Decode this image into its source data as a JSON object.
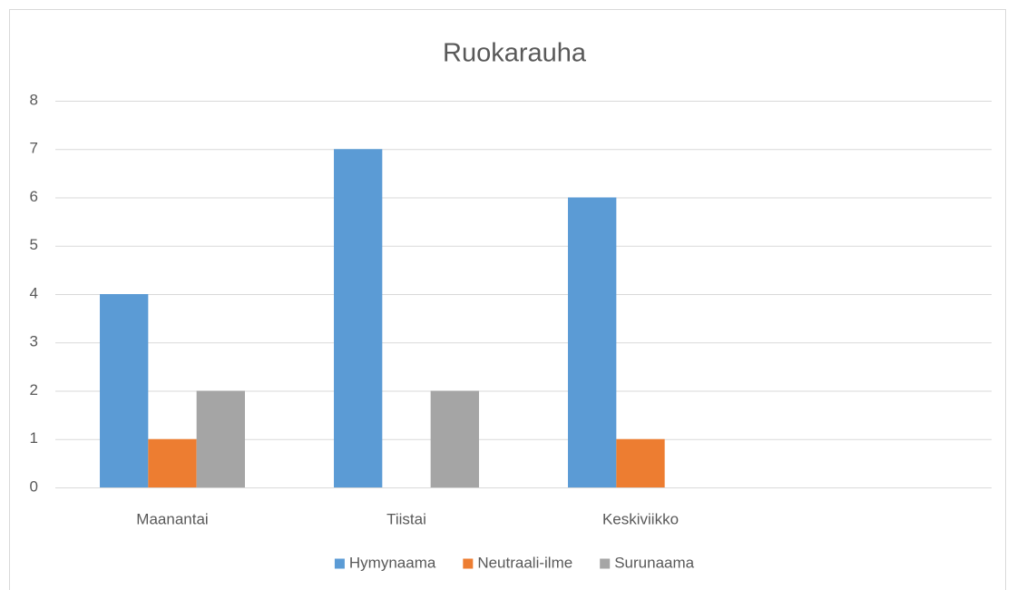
{
  "chart_data": {
    "type": "bar",
    "title": "Ruokarauha",
    "categories": [
      "Maanantai",
      "Tiistai",
      "Keskiviikko",
      null
    ],
    "series": [
      {
        "name": "Hymynaama",
        "color": "#5b9bd5",
        "values": [
          4,
          7,
          6,
          null
        ]
      },
      {
        "name": "Neutraali-ilme",
        "color": "#ed7d31",
        "values": [
          1,
          0,
          1,
          null
        ]
      },
      {
        "name": "Surunaama",
        "color": "#a5a5a5",
        "values": [
          2,
          2,
          0,
          null
        ]
      }
    ],
    "ylim": [
      0,
      8
    ],
    "yticks": [
      0,
      1,
      2,
      3,
      4,
      5,
      6,
      7,
      8
    ],
    "grid": true,
    "legend": "bottom"
  }
}
